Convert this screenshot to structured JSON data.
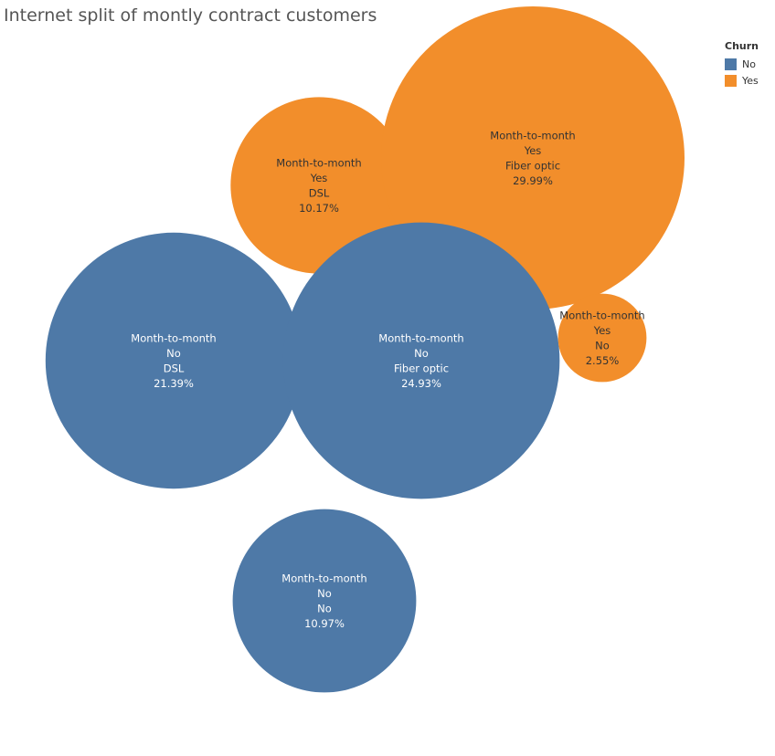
{
  "chart_data": {
    "type": "bubble",
    "title": "Internet split of montly contract customers",
    "legend": {
      "title": "Churn",
      "placement": "top-right",
      "items": [
        {
          "label": "No",
          "color": "#4e79a7"
        },
        {
          "label": "Yes",
          "color": "#f28e2b"
        }
      ]
    },
    "bubbles": [
      {
        "contract": "Month-to-month",
        "churn": "Yes",
        "internet": "DSL",
        "percent_label": "10.17%",
        "value": 10.17
      },
      {
        "contract": "Month-to-month",
        "churn": "Yes",
        "internet": "Fiber optic",
        "percent_label": "29.99%",
        "value": 29.99
      },
      {
        "contract": "Month-to-month",
        "churn": "No",
        "internet": "DSL",
        "percent_label": "21.39%",
        "value": 21.39
      },
      {
        "contract": "Month-to-month",
        "churn": "No",
        "internet": "Fiber optic",
        "percent_label": "24.93%",
        "value": 24.93
      },
      {
        "contract": "Month-to-month",
        "churn": "Yes",
        "internet": "No",
        "percent_label": "2.55%",
        "value": 2.55
      },
      {
        "contract": "Month-to-month",
        "churn": "No",
        "internet": "No",
        "percent_label": "10.97%",
        "value": 10.97
      }
    ]
  }
}
